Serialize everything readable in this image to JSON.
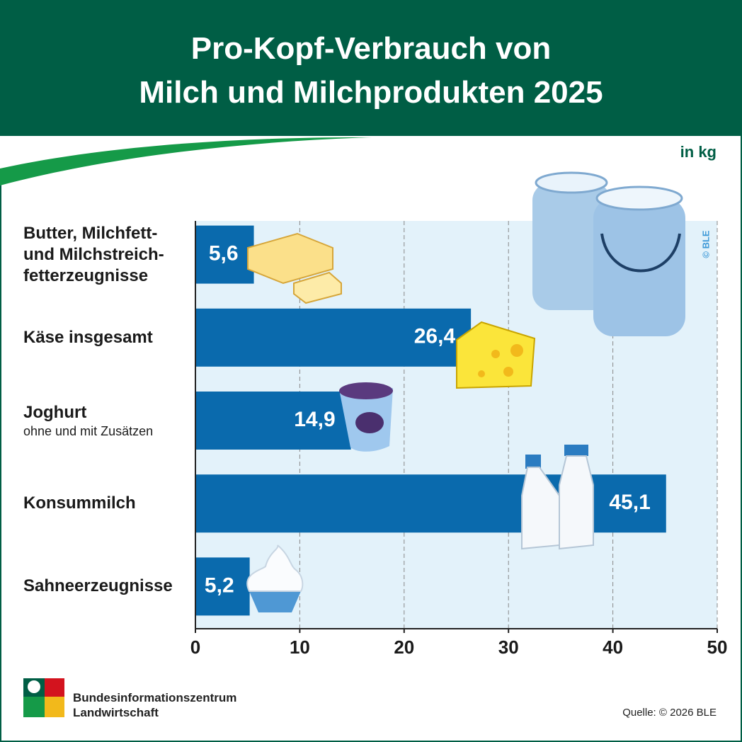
{
  "chart_data": {
    "type": "barh",
    "title": "Pro-Kopf-Verbrauch von\nMilch und Milchprodukten 2025",
    "unit": "in kg",
    "categories": [
      "Butter, Milchfett-\nund Milchstreich-\nfetterzeugnisse",
      "Käse insgesamt",
      "Joghurt",
      "Konsummilch",
      "Sahneerzeugnisse"
    ],
    "sublabels": [
      null,
      null,
      "ohne und mit Zusätzen",
      null,
      null
    ],
    "values": [
      5.6,
      26.4,
      14.9,
      45.1,
      5.2
    ],
    "value_labels": [
      "5,6",
      "26,4",
      "14,9",
      "45,1",
      "5,2"
    ],
    "color": "#0a6aad",
    "xlim": [
      0,
      50
    ],
    "xticks": [
      0,
      10,
      20,
      30,
      40,
      50
    ],
    "grid": true,
    "copyright": "© BLE",
    "logo_text": "Bundesinformationszentrum\nLandwirtschaft",
    "source": "Quelle: © 2026 BLE"
  }
}
